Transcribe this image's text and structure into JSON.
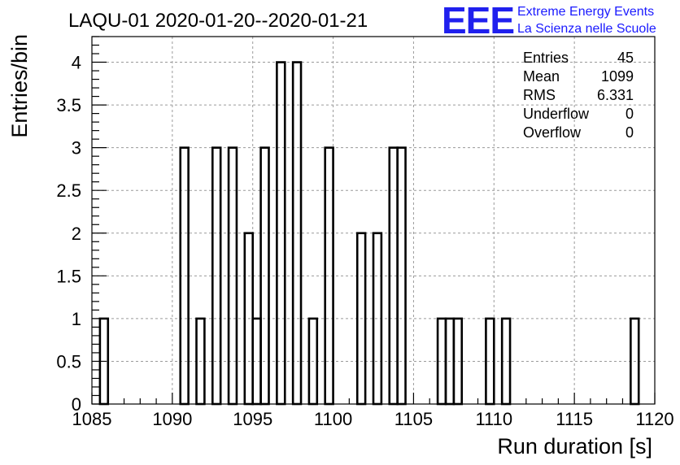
{
  "chart_data": {
    "type": "bar",
    "title": "LAQU-01 2020-01-20--2020-01-21",
    "xlabel": "Run duration [s]",
    "ylabel": "Entries/bin",
    "xlim": [
      1085,
      1120
    ],
    "ylim": [
      0,
      4.3
    ],
    "bin_width": 0.5,
    "x_ticks": [
      1085,
      1090,
      1095,
      1100,
      1105,
      1110,
      1115,
      1120
    ],
    "y_ticks": [
      0,
      0.5,
      1,
      1.5,
      2,
      2.5,
      3,
      3.5,
      4
    ],
    "y_tick_labels": [
      "0",
      "0.5",
      "1",
      "1.5",
      "2",
      "2.5",
      "3",
      "3.5",
      "4"
    ],
    "grid": true,
    "bins": [
      {
        "x": 1085.5,
        "value": 1
      },
      {
        "x": 1090.5,
        "value": 3
      },
      {
        "x": 1091.5,
        "value": 1
      },
      {
        "x": 1092.5,
        "value": 3
      },
      {
        "x": 1093.5,
        "value": 3
      },
      {
        "x": 1094.5,
        "value": 2
      },
      {
        "x": 1095.0,
        "value": 1
      },
      {
        "x": 1095.5,
        "value": 3
      },
      {
        "x": 1096.5,
        "value": 4
      },
      {
        "x": 1097.5,
        "value": 4
      },
      {
        "x": 1098.5,
        "value": 1
      },
      {
        "x": 1099.5,
        "value": 3
      },
      {
        "x": 1101.5,
        "value": 2
      },
      {
        "x": 1102.5,
        "value": 2
      },
      {
        "x": 1103.5,
        "value": 3
      },
      {
        "x": 1104.0,
        "value": 3
      },
      {
        "x": 1106.5,
        "value": 1
      },
      {
        "x": 1107.0,
        "value": 1
      },
      {
        "x": 1107.5,
        "value": 1
      },
      {
        "x": 1109.5,
        "value": 1
      },
      {
        "x": 1110.5,
        "value": 1
      },
      {
        "x": 1118.5,
        "value": 1
      }
    ],
    "stats": [
      {
        "label": "Entries",
        "value": "45"
      },
      {
        "label": "Mean",
        "value": "1099"
      },
      {
        "label": "RMS",
        "value": "6.331"
      },
      {
        "label": "Underflow",
        "value": "0"
      },
      {
        "label": "Overflow",
        "value": "0"
      }
    ],
    "stats_placement": "top-right"
  },
  "logo": {
    "mark": "EEE",
    "line1": "Extreme Energy Events",
    "line2": "La Scienza nelle Scuole",
    "color": "#1a1aff"
  }
}
